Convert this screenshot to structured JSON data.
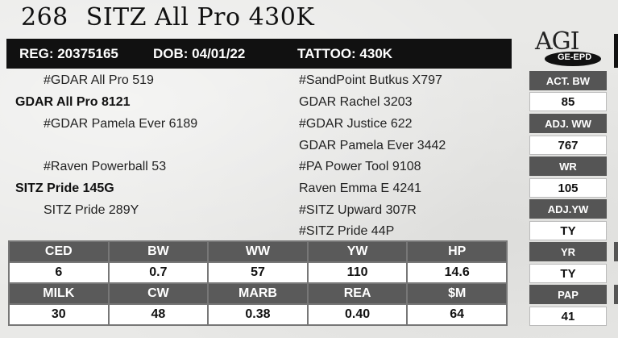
{
  "header": {
    "lot_number": "268",
    "animal_name": "SITZ All Pro 430K"
  },
  "id_bar": {
    "reg": "REG: 20375165",
    "dob": "DOB: 04/01/22",
    "tattoo": "TATTOO: 430K"
  },
  "logo": {
    "agi": "AGI",
    "ge_epd": "GE-EPD"
  },
  "pedigree": {
    "sire_sire": "#GDAR All Pro 519",
    "sire": "GDAR All Pro 8121",
    "sire_dam": "#GDAR Pamela Ever 6189",
    "dam_sire": "#Raven Powerball 53",
    "dam": "SITZ Pride 145G",
    "dam_dam": "SITZ Pride 289Y",
    "right": [
      "#SandPoint Butkus X797",
      "GDAR Rachel 3203",
      "#GDAR Justice 622",
      "GDAR Pamela Ever 3442",
      "#PA Power Tool 9108",
      "Raven Emma E 4241",
      "#SITZ Upward 307R",
      "#SITZ Pride 44P"
    ]
  },
  "side_stats": [
    {
      "label": "ACT. BW",
      "value": "85"
    },
    {
      "label": "ADJ. WW",
      "value": "767"
    },
    {
      "label": "WR",
      "value": "105"
    },
    {
      "label": "ADJ.YW",
      "value": "TY"
    },
    {
      "label": "YR",
      "value": "TY"
    },
    {
      "label": "PAP",
      "value": "41"
    }
  ],
  "epd_rows": [
    {
      "headers": [
        "CED",
        "BW",
        "WW",
        "YW",
        "HP"
      ],
      "values": [
        "6",
        "0.7",
        "57",
        "110",
        "14.6"
      ]
    },
    {
      "headers": [
        "MILK",
        "CW",
        "MARB",
        "REA",
        "$M"
      ],
      "values": [
        "30",
        "48",
        "0.38",
        "0.40",
        "64"
      ]
    }
  ]
}
